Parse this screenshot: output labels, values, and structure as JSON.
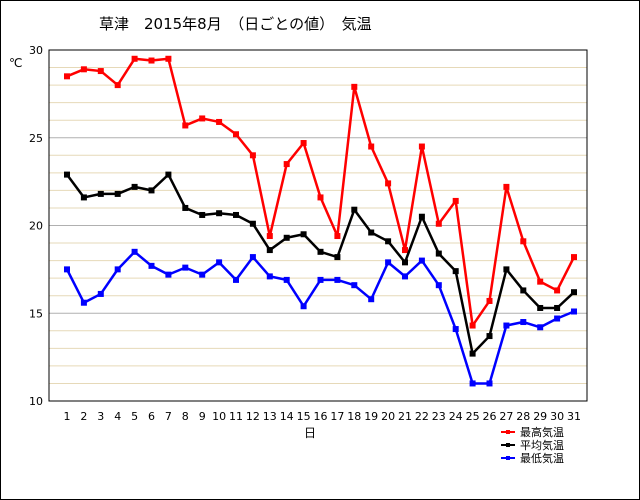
{
  "title": "草津　2015年8月　（日ごとの値）　気温",
  "chart_data": {
    "type": "line",
    "ylabel": "℃",
    "xlabel": "日",
    "ylim": [
      10,
      30
    ],
    "yticks": [
      10,
      15,
      20,
      25,
      30
    ],
    "grid": "horizontal minor lines every 1 ℃",
    "legend_position": "bottom-right",
    "x": [
      1,
      2,
      3,
      4,
      5,
      6,
      7,
      8,
      9,
      10,
      11,
      12,
      13,
      14,
      15,
      16,
      17,
      18,
      19,
      20,
      21,
      22,
      23,
      24,
      25,
      26,
      27,
      28,
      29,
      30,
      31
    ],
    "series": [
      {
        "name": "最高気温",
        "color": "#ff0000",
        "values": [
          28.5,
          28.9,
          28.8,
          28.0,
          29.5,
          29.4,
          29.5,
          25.7,
          26.1,
          25.9,
          25.2,
          24.0,
          19.4,
          23.5,
          24.7,
          21.6,
          19.4,
          27.9,
          24.5,
          22.4,
          18.6,
          24.5,
          20.1,
          21.4,
          14.3,
          15.7,
          22.2,
          19.1,
          16.8,
          16.3,
          18.2
        ]
      },
      {
        "name": "平均気温",
        "color": "#000000",
        "values": [
          22.9,
          21.6,
          21.8,
          21.8,
          22.2,
          22.0,
          22.9,
          21.0,
          20.6,
          20.7,
          20.6,
          20.1,
          18.6,
          19.3,
          19.5,
          18.5,
          18.2,
          20.9,
          19.6,
          19.1,
          17.9,
          20.5,
          18.4,
          17.4,
          12.7,
          13.7,
          17.5,
          16.3,
          15.3,
          15.3,
          16.2
        ]
      },
      {
        "name": "最低気温",
        "color": "#0000ff",
        "values": [
          17.5,
          15.6,
          16.1,
          17.5,
          18.5,
          17.7,
          17.2,
          17.6,
          17.2,
          17.9,
          16.9,
          18.2,
          17.1,
          16.9,
          15.4,
          16.9,
          16.9,
          16.6,
          15.8,
          17.9,
          17.1,
          18.0,
          16.6,
          14.1,
          11.0,
          11.0,
          14.3,
          14.5,
          14.2,
          14.7,
          15.1
        ]
      }
    ]
  }
}
